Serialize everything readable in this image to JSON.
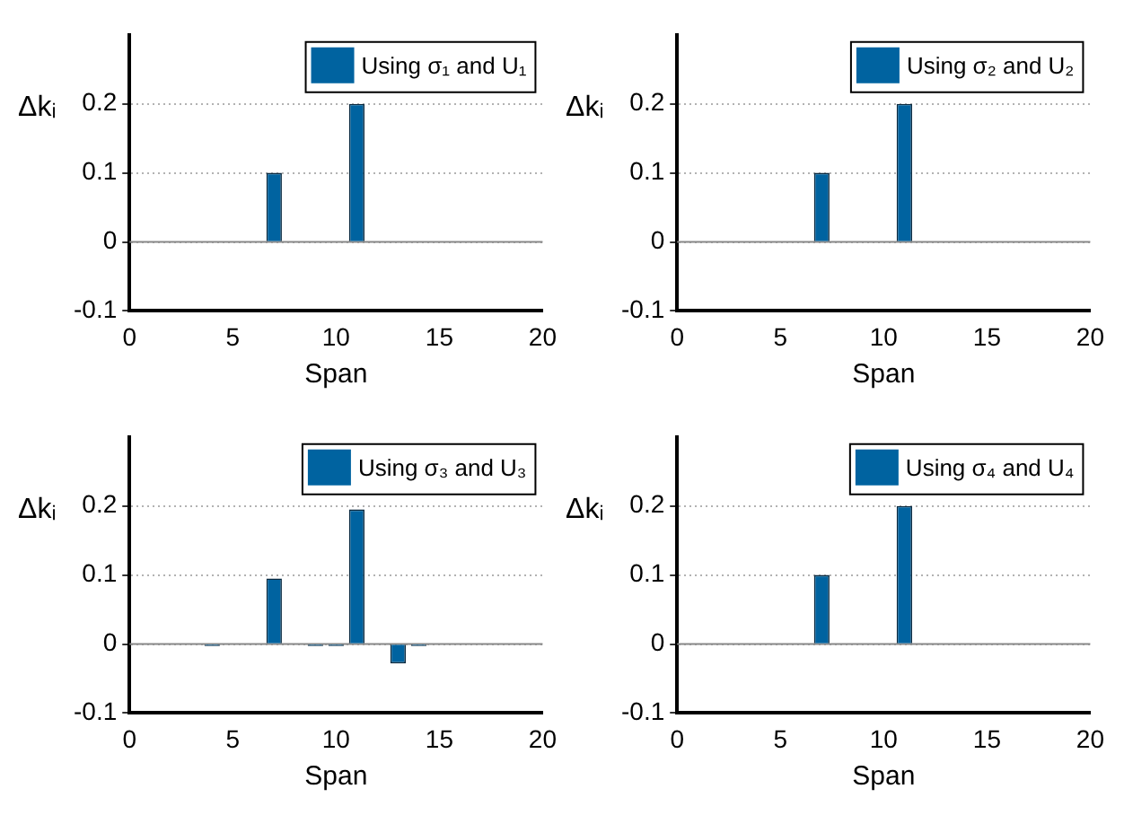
{
  "chart_data": [
    {
      "type": "bar",
      "x": [
        1,
        2,
        3,
        4,
        5,
        6,
        7,
        8,
        9,
        10,
        11,
        12,
        13,
        14,
        15,
        16,
        17,
        18,
        19,
        20
      ],
      "series": [
        {
          "name": "Using σ₁ and U₁",
          "color": "#0063a0",
          "values": [
            0,
            0,
            0,
            0,
            0,
            0,
            0.1,
            0,
            0,
            0,
            0.2,
            0,
            0,
            0,
            0,
            0,
            0,
            0,
            0,
            0
          ]
        }
      ],
      "ylabel": "Δkᵢ",
      "xlabel": "Span",
      "xlim": [
        0,
        20
      ],
      "xticks": [
        0,
        5,
        10,
        15,
        20
      ],
      "ylim": [
        -0.1,
        0.3
      ],
      "yticks": [
        -0.1,
        0,
        0.1,
        0.2
      ],
      "grid": "y",
      "legend": "top right"
    },
    {
      "type": "bar",
      "x": [
        1,
        2,
        3,
        4,
        5,
        6,
        7,
        8,
        9,
        10,
        11,
        12,
        13,
        14,
        15,
        16,
        17,
        18,
        19,
        20
      ],
      "series": [
        {
          "name": "Using σ₂ and U₂",
          "color": "#0063a0",
          "values": [
            0,
            0,
            0,
            0,
            0,
            0,
            0.1,
            0,
            0,
            0,
            0.2,
            0,
            0,
            0,
            0,
            0,
            0,
            0,
            0,
            0
          ]
        }
      ],
      "ylabel": "Δkᵢ",
      "xlabel": "Span",
      "xlim": [
        0,
        20
      ],
      "xticks": [
        0,
        5,
        10,
        15,
        20
      ],
      "ylim": [
        -0.1,
        0.3
      ],
      "yticks": [
        -0.1,
        0,
        0.1,
        0.2
      ],
      "grid": "y",
      "legend": "top right"
    },
    {
      "type": "bar",
      "x": [
        1,
        2,
        3,
        4,
        5,
        6,
        7,
        8,
        9,
        10,
        11,
        12,
        13,
        14,
        15,
        16,
        17,
        18,
        19,
        20
      ],
      "series": [
        {
          "name": "Using σ₃ and U₃",
          "color": "#0063a0",
          "values": [
            0,
            0,
            0,
            -0.003,
            0,
            0,
            0.095,
            0,
            -0.003,
            -0.003,
            0.195,
            0,
            -0.028,
            -0.003,
            0,
            0,
            0,
            0,
            0,
            0
          ]
        }
      ],
      "ylabel": "Δkᵢ",
      "xlabel": "Span",
      "xlim": [
        0,
        20
      ],
      "xticks": [
        0,
        5,
        10,
        15,
        20
      ],
      "ylim": [
        -0.1,
        0.3
      ],
      "yticks": [
        -0.1,
        0,
        0.1,
        0.2
      ],
      "grid": "y",
      "legend": "top right"
    },
    {
      "type": "bar",
      "x": [
        1,
        2,
        3,
        4,
        5,
        6,
        7,
        8,
        9,
        10,
        11,
        12,
        13,
        14,
        15,
        16,
        17,
        18,
        19,
        20
      ],
      "series": [
        {
          "name": "Using σ₄ and U₄",
          "color": "#0063a0",
          "values": [
            0,
            0,
            0,
            0,
            0,
            0,
            0.1,
            0,
            0,
            0,
            0.2,
            0,
            0,
            0,
            0,
            0,
            0,
            0,
            0,
            0
          ]
        }
      ],
      "ylabel": "Δkᵢ",
      "xlabel": "Span",
      "xlim": [
        0,
        20
      ],
      "xticks": [
        0,
        5,
        10,
        15,
        20
      ],
      "ylim": [
        -0.1,
        0.3
      ],
      "yticks": [
        -0.1,
        0,
        0.1,
        0.2
      ],
      "grid": "y",
      "legend": "top right"
    }
  ]
}
